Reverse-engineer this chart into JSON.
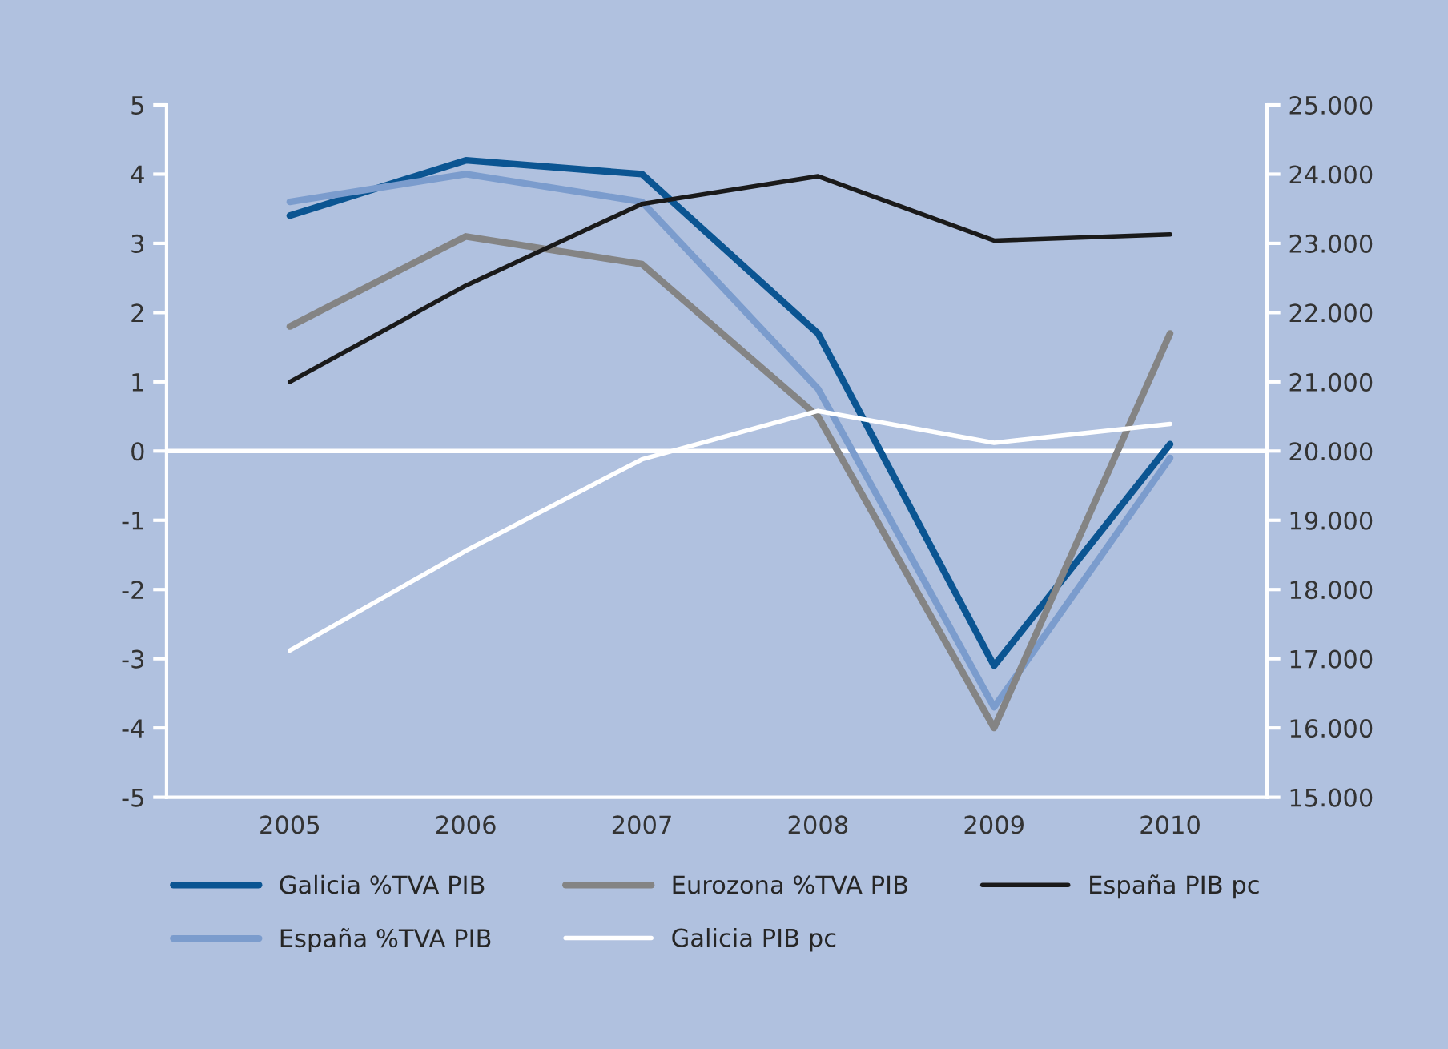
{
  "chart_data": {
    "type": "line",
    "x": [
      2005,
      2006,
      2007,
      2008,
      2009,
      2010
    ],
    "series": [
      {
        "name": "Galicia %TVA PIB",
        "color": "#0b5592",
        "values": [
          3.4,
          4.2,
          4.0,
          1.7,
          -3.1,
          0.1
        ]
      },
      {
        "name": "España %TVA PIB",
        "color": "#7b9ccd",
        "values": [
          3.6,
          4.0,
          3.6,
          0.9,
          -3.7,
          -0.1
        ]
      },
      {
        "name": "Eurozona %TVA PIB",
        "color": "#848484",
        "values": [
          1.8,
          3.1,
          2.7,
          0.5,
          -4.0,
          1.7
        ]
      },
      {
        "name": "Galicia PIB pc",
        "color": "#ffffff",
        "axis": "y2",
        "values": [
          17120,
          18560,
          19880,
          20580,
          20120,
          20390
        ]
      },
      {
        "name": "España PIB pc",
        "color": "#1a1a1a",
        "axis": "y2",
        "values": [
          21000,
          22390,
          23570,
          23970,
          23040,
          23130
        ]
      }
    ],
    "xlim": [
      2004.3,
      2010.55
    ],
    "xticks": [
      2005,
      2006,
      2007,
      2008,
      2009,
      2010
    ],
    "ylim": [
      -5,
      5
    ],
    "yticks": [
      -5,
      -4,
      -3,
      -2,
      -1,
      0,
      1,
      2,
      3,
      4,
      5
    ],
    "y2lim": [
      15000,
      25000
    ],
    "y2ticks": [
      {
        "value": 15000,
        "label": "15.000"
      },
      {
        "value": 16000,
        "label": "16.000"
      },
      {
        "value": 17000,
        "label": "17.000"
      },
      {
        "value": 18000,
        "label": "18.000"
      },
      {
        "value": 19000,
        "label": "19.000"
      },
      {
        "value": 20000,
        "label": "20.000"
      },
      {
        "value": 21000,
        "label": "21.000"
      },
      {
        "value": 22000,
        "label": "22.000"
      },
      {
        "value": 23000,
        "label": "23.000"
      },
      {
        "value": 24000,
        "label": "24.000"
      },
      {
        "value": 25000,
        "label": "25.000"
      }
    ],
    "ref_lines": [
      {
        "axis": "y",
        "value": 0,
        "color": "#ffffff"
      }
    ],
    "legend": "bottom",
    "grid": false,
    "line_style": "solid"
  }
}
